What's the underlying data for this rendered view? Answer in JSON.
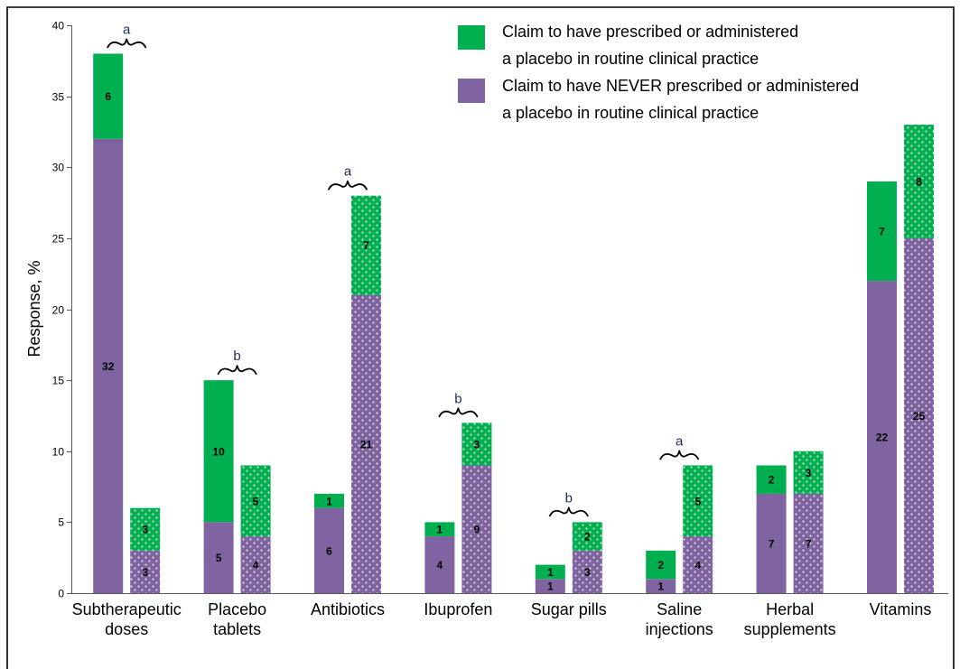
{
  "chart_data": {
    "type": "bar",
    "stacked": true,
    "ylabel": "Response, %",
    "ylim": [
      0,
      40
    ],
    "yticks": [
      0,
      5,
      10,
      15,
      20,
      25,
      30,
      35,
      40
    ],
    "grid": false,
    "legend": {
      "position": "top-right"
    },
    "categories": [
      "Subtherapeutic\ndoses",
      "Placebo\ntablets",
      "Antibiotics",
      "Ibuprofen",
      "Sugar pills",
      "Saline\ninjections",
      "Herbal\nsupplements",
      "Vitamins"
    ],
    "bar_fills": [
      "solid",
      "dotted"
    ],
    "series": [
      {
        "name": "Claim to have prescribed or administered\na placebo in routine clinical practice",
        "color": "#00B050",
        "values": [
          [
            6,
            3
          ],
          [
            10,
            5
          ],
          [
            1,
            7
          ],
          [
            1,
            3
          ],
          [
            1,
            2
          ],
          [
            2,
            5
          ],
          [
            2,
            3
          ],
          [
            7,
            8
          ]
        ]
      },
      {
        "name": "Claim to have NEVER prescribed or administered\na placebo in routine clinical practice",
        "color": "#8064A2",
        "values": [
          [
            32,
            3
          ],
          [
            5,
            4
          ],
          [
            6,
            21
          ],
          [
            4,
            9
          ],
          [
            1,
            3
          ],
          [
            1,
            4
          ],
          [
            7,
            7
          ],
          [
            22,
            25
          ]
        ]
      }
    ],
    "annotations": [
      {
        "category_index": 0,
        "text": "a"
      },
      {
        "category_index": 1,
        "text": "b"
      },
      {
        "category_index": 2,
        "text": "a"
      },
      {
        "category_index": 3,
        "text": "b"
      },
      {
        "category_index": 4,
        "text": "b"
      },
      {
        "category_index": 5,
        "text": "a"
      }
    ],
    "annotation_color": "#1F2A56"
  }
}
